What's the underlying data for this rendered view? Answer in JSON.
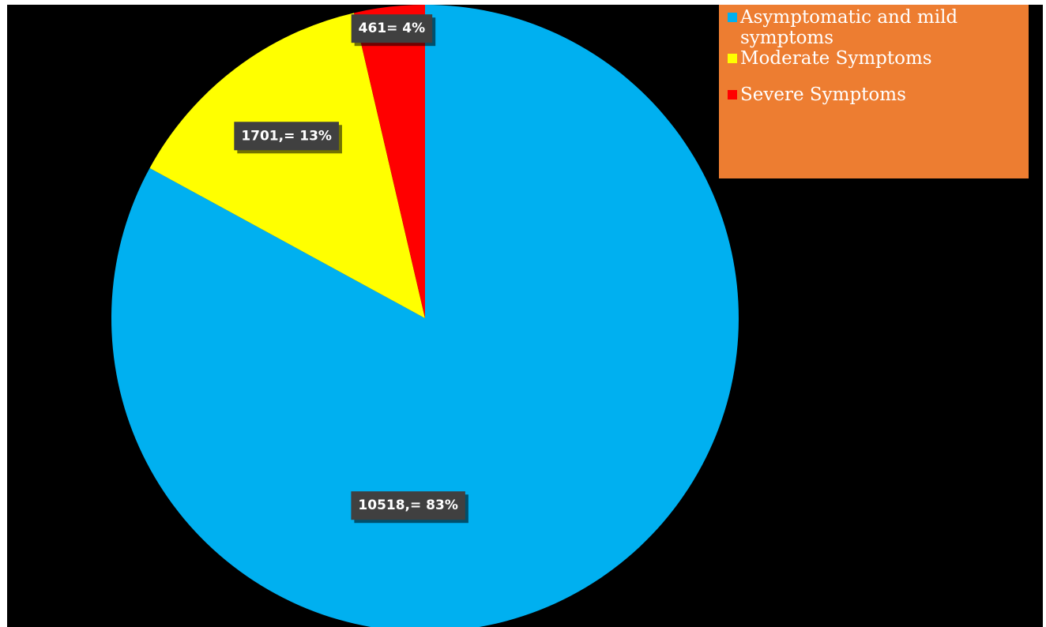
{
  "chart_data": {
    "type": "pie",
    "title": "",
    "start_angle_deg": 0,
    "direction": "clockwise",
    "slices": [
      {
        "name": "Asymptomatic and mild symptoms",
        "value": 10518,
        "percent": 83,
        "label": "10518,= 83%",
        "color": "#00b0f0"
      },
      {
        "name": "Moderate Symptoms",
        "value": 1701,
        "percent": 13,
        "label": "1701,= 13%",
        "color": "#ffff00"
      },
      {
        "name": "Severe Symptoms",
        "value": 461,
        "percent": 4,
        "label": "461=  4%",
        "color": "#ff0000"
      }
    ],
    "legend": {
      "position": "top-right",
      "background": "#ed7d31"
    },
    "label_box_color": "#404040",
    "background": "#000000"
  },
  "legend": {
    "items": [
      {
        "label": "Asymptomatic and mild symptoms",
        "color": "#00b0f0"
      },
      {
        "label": "Moderate Symptoms",
        "color": "#ffff00"
      },
      {
        "label": "Severe Symptoms",
        "color": "#ff0000"
      }
    ]
  }
}
